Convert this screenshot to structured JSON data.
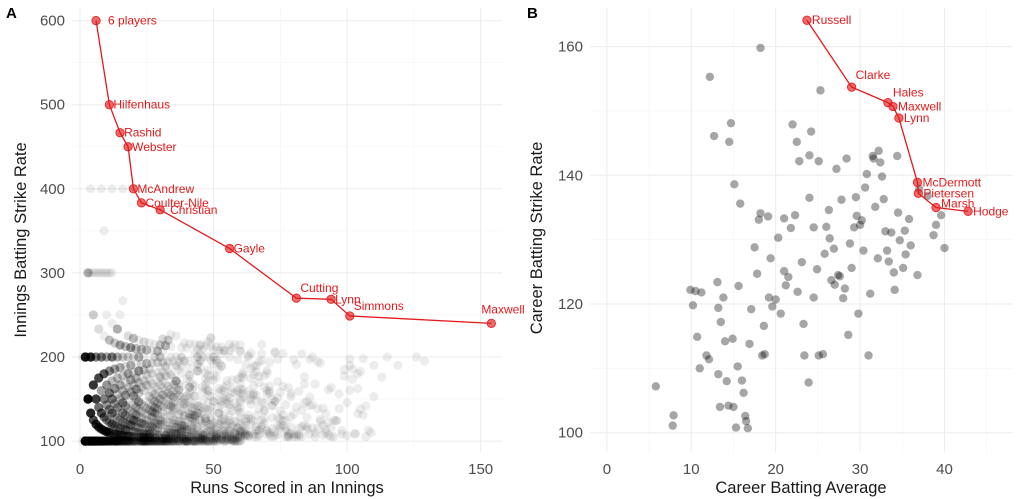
{
  "colors": {
    "frontier": "#e31a1c",
    "points": "#000000",
    "grid": "#ebebeb"
  },
  "chart_data": [
    {
      "panel": "A",
      "type": "scatter",
      "xlabel": "Runs Scored in an Innings",
      "ylabel": "Innings Batting Strike Rate",
      "xlim": [
        -3,
        158
      ],
      "ylim": [
        87,
        615
      ],
      "xticks": [
        0,
        50,
        100,
        150
      ],
      "yticks": [
        100,
        200,
        300,
        400,
        500,
        600
      ],
      "xminor": [
        25,
        75,
        125
      ],
      "yminor": [
        150,
        250,
        350,
        450,
        550
      ],
      "point_opacity": 0.07,
      "frontier": [
        {
          "x": 6,
          "y": 600,
          "label": "6 players"
        },
        {
          "x": 11,
          "y": 500,
          "label": "Hilfenhaus"
        },
        {
          "x": 15,
          "y": 466.7,
          "label": "Rashid"
        },
        {
          "x": 18,
          "y": 450,
          "label": "Webster"
        },
        {
          "x": 20,
          "y": 400,
          "label": "McAndrew"
        },
        {
          "x": 23,
          "y": 383.3,
          "label": "Coulter-Nile"
        },
        {
          "x": 30,
          "y": 375,
          "label": "Christian"
        },
        {
          "x": 56,
          "y": 329,
          "label": "Gayle"
        },
        {
          "x": 81,
          "y": 270,
          "label": "Cutting"
        },
        {
          "x": 94,
          "y": 268.6,
          "label": "Lynn"
        },
        {
          "x": 101,
          "y": 248.8,
          "label": "Simmons"
        },
        {
          "x": 154,
          "y": 240,
          "label": "Maxwell"
        }
      ],
      "label_offsets": {
        "6 players": [
          12,
          0
        ],
        "Hilfenhaus": [
          4,
          0
        ],
        "Rashid": [
          4,
          0
        ],
        "Webster": [
          4,
          0
        ],
        "McAndrew": [
          4,
          0
        ],
        "Coulter-Nile": [
          4,
          0
        ],
        "Christian": [
          10,
          0
        ],
        "Gayle": [
          4,
          0
        ],
        "Cutting": [
          4,
          -10
        ],
        "Lynn": [
          4,
          0
        ],
        "Simmons": [
          4,
          -10
        ],
        "Maxwell": [
          -10,
          -14
        ]
      }
    },
    {
      "panel": "B",
      "type": "scatter",
      "xlabel": "Career Batting Average",
      "ylabel": "Career Batting Strike Rate",
      "xlim": [
        -2,
        48
      ],
      "ylim": [
        97,
        166
      ],
      "xticks": [
        0,
        10,
        20,
        30,
        40
      ],
      "yticks": [
        100,
        120,
        140,
        160
      ],
      "xminor": [
        5,
        15,
        25,
        35,
        45
      ],
      "yminor": [
        110,
        130,
        150
      ],
      "point_opacity": 0.35,
      "points": [
        [
          5.8,
          107.2
        ],
        [
          7.9,
          102.7
        ],
        [
          7.8,
          101.1
        ],
        [
          9.9,
          122.2
        ],
        [
          10.2,
          119.8
        ],
        [
          10.7,
          114.9
        ],
        [
          10.5,
          122.0
        ],
        [
          11.0,
          110.0
        ],
        [
          11.2,
          121.8
        ],
        [
          11.8,
          112.0
        ],
        [
          12.1,
          111.4
        ],
        [
          12.2,
          155.3
        ],
        [
          12.7,
          146.1
        ],
        [
          13.1,
          123.4
        ],
        [
          13.2,
          119.4
        ],
        [
          13.5,
          117.2
        ],
        [
          13.2,
          109.1
        ],
        [
          13.4,
          104.0
        ],
        [
          13.8,
          121.0
        ],
        [
          14.0,
          114.2
        ],
        [
          14.2,
          108.0
        ],
        [
          14.4,
          104.2
        ],
        [
          14.7,
          148.1
        ],
        [
          14.5,
          145.2
        ],
        [
          14.9,
          114.6
        ],
        [
          15.0,
          104.0
        ],
        [
          15.3,
          100.8
        ],
        [
          15.1,
          138.6
        ],
        [
          15.5,
          110.3
        ],
        [
          15.6,
          122.8
        ],
        [
          15.8,
          135.6
        ],
        [
          16.0,
          108.1
        ],
        [
          16.2,
          106.2
        ],
        [
          16.4,
          102.6
        ],
        [
          16.5,
          101.8
        ],
        [
          16.7,
          100.7
        ],
        [
          16.9,
          113.8
        ],
        [
          17.1,
          119.2
        ],
        [
          17.5,
          128.8
        ],
        [
          17.8,
          124.7
        ],
        [
          18.0,
          133.1
        ],
        [
          18.2,
          134.1
        ],
        [
          18.2,
          159.8
        ],
        [
          18.4,
          112.0
        ],
        [
          18.6,
          116.6
        ],
        [
          18.7,
          112.2
        ],
        [
          19.1,
          133.6
        ],
        [
          19.2,
          121.0
        ],
        [
          19.4,
          127.1
        ],
        [
          19.6,
          119.6
        ],
        [
          20.0,
          120.7
        ],
        [
          20.3,
          130.3
        ],
        [
          20.6,
          118.5
        ],
        [
          21.0,
          133.3
        ],
        [
          21.0,
          125.1
        ],
        [
          21.2,
          122.9
        ],
        [
          21.5,
          124.2
        ],
        [
          21.8,
          131.8
        ],
        [
          22.0,
          147.9
        ],
        [
          22.3,
          133.8
        ],
        [
          22.5,
          145.2
        ],
        [
          22.6,
          121.9
        ],
        [
          22.8,
          142.2
        ],
        [
          23.1,
          126.5
        ],
        [
          23.3,
          116.9
        ],
        [
          23.4,
          112.0
        ],
        [
          23.9,
          107.8
        ],
        [
          24.0,
          143.1
        ],
        [
          24.0,
          136.5
        ],
        [
          24.2,
          146.8
        ],
        [
          24.5,
          131.9
        ],
        [
          24.5,
          121.0
        ],
        [
          24.9,
          125.4
        ],
        [
          25.1,
          112.0
        ],
        [
          25.1,
          142.2
        ],
        [
          25.3,
          153.2
        ],
        [
          25.6,
          112.2
        ],
        [
          25.8,
          127.8
        ],
        [
          26.0,
          132.0
        ],
        [
          26.3,
          134.6
        ],
        [
          26.4,
          130.2
        ],
        [
          26.6,
          123.7
        ],
        [
          26.9,
          128.6
        ],
        [
          27.0,
          123.0
        ],
        [
          27.2,
          141.0
        ],
        [
          27.4,
          124.5
        ],
        [
          27.6,
          124.3
        ],
        [
          27.8,
          136.2
        ],
        [
          28.0,
          120.9
        ],
        [
          28.2,
          122.4
        ],
        [
          28.4,
          142.6
        ],
        [
          28.6,
          115.2
        ],
        [
          28.8,
          129.4
        ],
        [
          29.0,
          125.6
        ],
        [
          29.3,
          131.9
        ],
        [
          29.5,
          136.6
        ],
        [
          29.6,
          133.7
        ],
        [
          29.8,
          118.5
        ],
        [
          30.0,
          132.3
        ],
        [
          30.2,
          133.0
        ],
        [
          30.4,
          128.3
        ],
        [
          30.6,
          138.1
        ],
        [
          30.8,
          140.2
        ],
        [
          31.0,
          112.0
        ],
        [
          31.2,
          121.6
        ],
        [
          31.5,
          143.0
        ],
        [
          31.6,
          142.6
        ],
        [
          31.8,
          135.1
        ],
        [
          32.1,
          127.1
        ],
        [
          32.2,
          143.8
        ],
        [
          32.4,
          142.0
        ],
        [
          32.6,
          139.8
        ],
        [
          32.8,
          136.3
        ],
        [
          33.0,
          131.3
        ],
        [
          33.2,
          128.3
        ],
        [
          33.4,
          126.6
        ],
        [
          33.7,
          131.1
        ],
        [
          34.0,
          124.9
        ],
        [
          34.1,
          122.2
        ],
        [
          34.4,
          143.0
        ],
        [
          34.5,
          134.2
        ],
        [
          34.7,
          129.9
        ],
        [
          35.1,
          125.6
        ],
        [
          35.3,
          131.4
        ],
        [
          35.4,
          127.7
        ],
        [
          35.8,
          133.2
        ],
        [
          36.0,
          129.1
        ],
        [
          36.8,
          124.5
        ],
        [
          37.0,
          137.9
        ],
        [
          38.0,
          136.8
        ],
        [
          38.7,
          130.7
        ],
        [
          39.0,
          132.3
        ],
        [
          39.6,
          133.8
        ],
        [
          40.0,
          128.7
        ]
      ],
      "frontier": [
        {
          "x": 23.7,
          "y": 164.1,
          "label": "Russell"
        },
        {
          "x": 29.0,
          "y": 153.7,
          "label": "Clarke"
        },
        {
          "x": 33.3,
          "y": 151.3,
          "label": "Hales"
        },
        {
          "x": 33.9,
          "y": 150.7,
          "label": "Maxwell"
        },
        {
          "x": 34.6,
          "y": 148.9,
          "label": "Lynn"
        },
        {
          "x": 36.8,
          "y": 138.9,
          "label": "McDermott"
        },
        {
          "x": 36.9,
          "y": 137.2,
          "label": "Pietersen"
        },
        {
          "x": 39.0,
          "y": 135.0,
          "label": "Marsh"
        },
        {
          "x": 42.8,
          "y": 134.4,
          "label": "Hodge"
        }
      ],
      "label_offsets": {
        "Russell": [
          5,
          0
        ],
        "Clarke": [
          4,
          -12
        ],
        "Hales": [
          5,
          -10
        ],
        "Maxwell": [
          5,
          0
        ],
        "Lynn": [
          5,
          0
        ],
        "McDermott": [
          5,
          0
        ],
        "Pietersen": [
          5,
          0
        ],
        "Marsh": [
          5,
          -4
        ],
        "Hodge": [
          5,
          0
        ]
      }
    }
  ]
}
